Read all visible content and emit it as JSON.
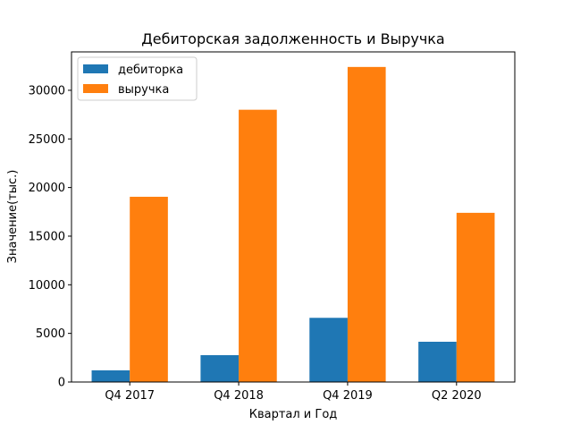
{
  "chart_data": {
    "type": "bar",
    "title": "Дебиторская задолженность и Выручка",
    "x_label": "Квартал и Год",
    "y_label": "Значение(тыс.)",
    "categories": [
      "Q4 2017",
      "Q4 2018",
      "Q4 2019",
      "Q2 2020"
    ],
    "series": [
      {
        "name": "дебиторка",
        "color": "#1f77b4",
        "values": [
          1200,
          2760,
          6600,
          4140
        ]
      },
      {
        "name": "выручка",
        "color": "#ff7f0e",
        "values": [
          19050,
          28000,
          32400,
          17400
        ]
      }
    ],
    "ylim": [
      0,
      33950
    ],
    "yticks": [
      0,
      5000,
      10000,
      15000,
      20000,
      25000,
      30000
    ],
    "legend": "upper left"
  }
}
